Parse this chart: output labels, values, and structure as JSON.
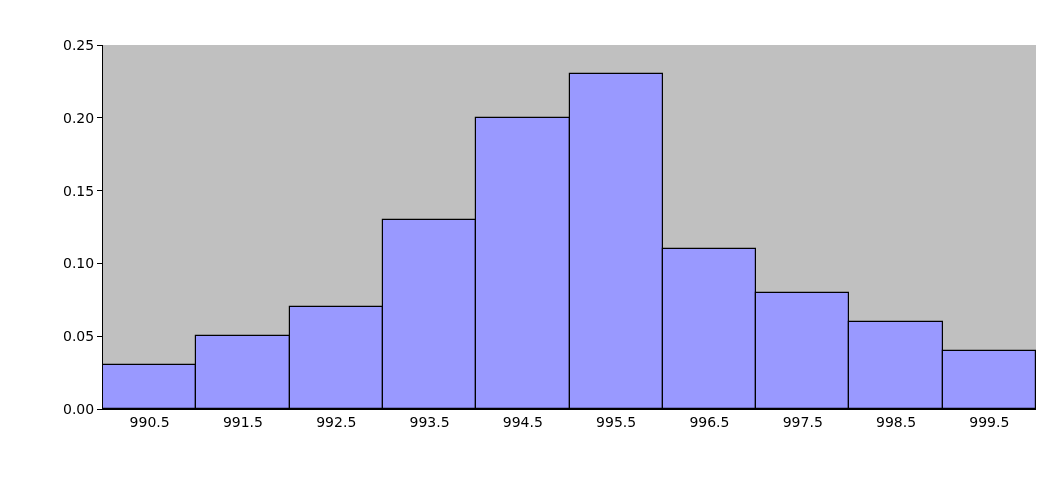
{
  "chart_data": {
    "type": "bar",
    "categories": [
      "990.5",
      "991.5",
      "992.5",
      "993.5",
      "994.5",
      "995.5",
      "996.5",
      "997.5",
      "998.5",
      "999.5"
    ],
    "values": [
      0.03,
      0.05,
      0.07,
      0.13,
      0.2,
      0.23,
      0.11,
      0.08,
      0.06,
      0.04
    ],
    "color": "#9999ff",
    "ylim": [
      0,
      0.25
    ],
    "yticks": [
      {
        "value": 0,
        "label": "0.00"
      },
      {
        "value": 0.05,
        "label": "0.05"
      },
      {
        "value": 0.1,
        "label": "0.10"
      },
      {
        "value": 0.15,
        "label": "0.15"
      },
      {
        "value": 0.2,
        "label": "0.20"
      },
      {
        "value": 0.25,
        "label": "0.25"
      }
    ],
    "grid": false
  }
}
